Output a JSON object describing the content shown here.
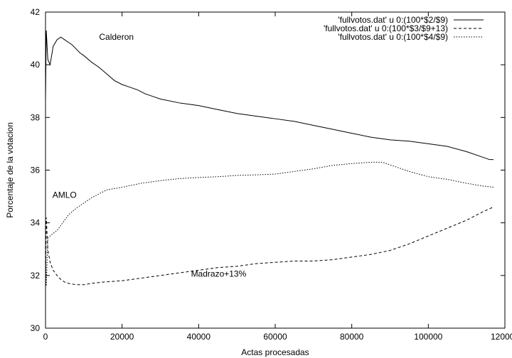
{
  "chart_data": {
    "type": "line",
    "xlabel": "Actas procesadas",
    "ylabel": "Porcentaje de la votacion",
    "xlim": [
      0,
      120000
    ],
    "ylim": [
      30,
      42
    ],
    "xticks": [
      0,
      20000,
      40000,
      60000,
      80000,
      100000,
      120000
    ],
    "yticks": [
      30,
      32,
      34,
      36,
      38,
      40,
      42
    ],
    "legend_position": "top-right",
    "annotations": [
      {
        "text": "Calderon",
        "x": 14000,
        "y": 40.95
      },
      {
        "text": "AMLO",
        "x": 1800,
        "y": 34.95
      },
      {
        "text": "Madrazo+13%",
        "x": 38000,
        "y": 31.95
      }
    ],
    "series": [
      {
        "name": "'fullvotos.dat' u 0:(100*$2/$9)",
        "label": "Calderon",
        "style": "solid",
        "points": [
          [
            0,
            38.6
          ],
          [
            200,
            41.3
          ],
          [
            600,
            40.2
          ],
          [
            1200,
            40.0
          ],
          [
            2000,
            40.7
          ],
          [
            3000,
            40.95
          ],
          [
            4000,
            41.05
          ],
          [
            5000,
            40.95
          ],
          [
            6000,
            40.85
          ],
          [
            7000,
            40.75
          ],
          [
            8000,
            40.6
          ],
          [
            9000,
            40.45
          ],
          [
            10000,
            40.35
          ],
          [
            12000,
            40.1
          ],
          [
            14000,
            39.9
          ],
          [
            16000,
            39.65
          ],
          [
            18000,
            39.4
          ],
          [
            20000,
            39.25
          ],
          [
            22000,
            39.15
          ],
          [
            24000,
            39.05
          ],
          [
            26000,
            38.9
          ],
          [
            28000,
            38.8
          ],
          [
            30000,
            38.7
          ],
          [
            35000,
            38.55
          ],
          [
            40000,
            38.45
          ],
          [
            45000,
            38.3
          ],
          [
            50000,
            38.15
          ],
          [
            55000,
            38.05
          ],
          [
            60000,
            37.95
          ],
          [
            65000,
            37.85
          ],
          [
            70000,
            37.7
          ],
          [
            75000,
            37.55
          ],
          [
            80000,
            37.4
          ],
          [
            85000,
            37.25
          ],
          [
            90000,
            37.15
          ],
          [
            95000,
            37.1
          ],
          [
            100000,
            37.0
          ],
          [
            105000,
            36.9
          ],
          [
            110000,
            36.7
          ],
          [
            114000,
            36.5
          ],
          [
            116000,
            36.4
          ],
          [
            117000,
            36.4
          ]
        ]
      },
      {
        "name": "'fullvotos.dat' u 0:(100*$3/$9+13)",
        "label": "Madrazo+13%",
        "style": "dashed",
        "points": [
          [
            0,
            31.5
          ],
          [
            200,
            34.2
          ],
          [
            600,
            33.0
          ],
          [
            1200,
            32.5
          ],
          [
            2000,
            32.2
          ],
          [
            3000,
            32.0
          ],
          [
            4000,
            31.85
          ],
          [
            5000,
            31.75
          ],
          [
            6000,
            31.7
          ],
          [
            8000,
            31.65
          ],
          [
            10000,
            31.65
          ],
          [
            12000,
            31.7
          ],
          [
            15000,
            31.75
          ],
          [
            20000,
            31.8
          ],
          [
            25000,
            31.9
          ],
          [
            30000,
            32.0
          ],
          [
            35000,
            32.1
          ],
          [
            40000,
            32.2
          ],
          [
            45000,
            32.3
          ],
          [
            50000,
            32.35
          ],
          [
            55000,
            32.45
          ],
          [
            60000,
            32.5
          ],
          [
            65000,
            32.55
          ],
          [
            70000,
            32.55
          ],
          [
            75000,
            32.6
          ],
          [
            80000,
            32.7
          ],
          [
            85000,
            32.8
          ],
          [
            90000,
            32.95
          ],
          [
            95000,
            33.2
          ],
          [
            100000,
            33.5
          ],
          [
            105000,
            33.8
          ],
          [
            110000,
            34.1
          ],
          [
            114000,
            34.4
          ],
          [
            117000,
            34.6
          ]
        ]
      },
      {
        "name": "'fullvotos.dat' u 0:(100*$4/$9)",
        "label": "AMLO",
        "style": "dotted",
        "points": [
          [
            0,
            32.9
          ],
          [
            200,
            31.6
          ],
          [
            600,
            33.4
          ],
          [
            1200,
            33.5
          ],
          [
            2000,
            33.6
          ],
          [
            3000,
            33.7
          ],
          [
            4000,
            33.9
          ],
          [
            5000,
            34.1
          ],
          [
            6000,
            34.3
          ],
          [
            8000,
            34.55
          ],
          [
            10000,
            34.75
          ],
          [
            12000,
            34.95
          ],
          [
            14000,
            35.1
          ],
          [
            16000,
            35.25
          ],
          [
            18000,
            35.3
          ],
          [
            20000,
            35.35
          ],
          [
            25000,
            35.5
          ],
          [
            30000,
            35.6
          ],
          [
            35000,
            35.68
          ],
          [
            40000,
            35.72
          ],
          [
            45000,
            35.75
          ],
          [
            50000,
            35.8
          ],
          [
            55000,
            35.82
          ],
          [
            60000,
            35.85
          ],
          [
            65000,
            35.95
          ],
          [
            70000,
            36.05
          ],
          [
            75000,
            36.18
          ],
          [
            80000,
            36.25
          ],
          [
            85000,
            36.3
          ],
          [
            88000,
            36.3
          ],
          [
            90000,
            36.2
          ],
          [
            95000,
            35.95
          ],
          [
            100000,
            35.75
          ],
          [
            105000,
            35.65
          ],
          [
            110000,
            35.5
          ],
          [
            114000,
            35.4
          ],
          [
            117000,
            35.35
          ]
        ]
      }
    ]
  }
}
